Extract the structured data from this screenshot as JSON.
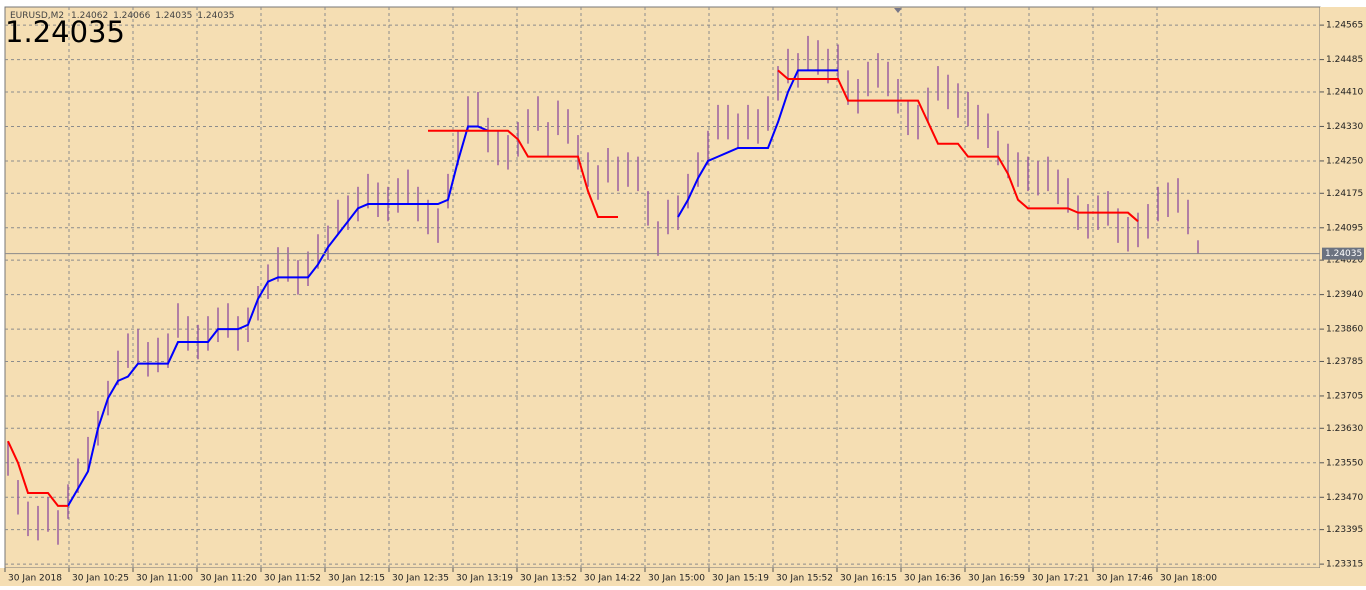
{
  "chart_data": {
    "type": "ohlc",
    "header": {
      "symbol": "EURUSD,M2",
      "ohlc": [
        "1.24062",
        "1.24066",
        "1.24035",
        "1.24035"
      ]
    },
    "last_price": "1.24035",
    "last_price_value": 1.24035,
    "ylim": [
      1.23306,
      1.24607
    ],
    "xlim": [
      -0.3,
      131.2
    ],
    "grid": true,
    "background": "#f5deb3",
    "bar_color": "#9a5fa0",
    "yticks": [
      {
        "value": 1.24565,
        "label": "1.24565"
      },
      {
        "value": 1.24485,
        "label": "1.24485"
      },
      {
        "value": 1.2441,
        "label": "1.24410"
      },
      {
        "value": 1.2433,
        "label": "1.24330"
      },
      {
        "value": 1.2425,
        "label": "1.24250"
      },
      {
        "value": 1.24175,
        "label": "1.24175"
      },
      {
        "value": 1.24095,
        "label": "1.24095"
      },
      {
        "value": 1.2402,
        "label": "1.24020"
      },
      {
        "value": 1.2394,
        "label": "1.23940"
      },
      {
        "value": 1.2386,
        "label": "1.23860"
      },
      {
        "value": 1.23785,
        "label": "1.23785"
      },
      {
        "value": 1.23705,
        "label": "1.23705"
      },
      {
        "value": 1.2363,
        "label": "1.23630"
      },
      {
        "value": 1.2355,
        "label": "1.23550"
      },
      {
        "value": 1.2347,
        "label": "1.23470"
      },
      {
        "value": 1.23395,
        "label": "1.23395"
      },
      {
        "value": 1.23315,
        "label": "1.23315"
      }
    ],
    "xticks": [
      {
        "value": -0.3,
        "label": "30 Jan 2018"
      },
      {
        "value": 6.1,
        "label": "30 Jan 10:25"
      },
      {
        "value": 12.5,
        "label": "30 Jan 11:00"
      },
      {
        "value": 18.9,
        "label": "30 Jan 11:20"
      },
      {
        "value": 25.3,
        "label": "30 Jan 11:52"
      },
      {
        "value": 31.7,
        "label": "30 Jan 12:15"
      },
      {
        "value": 38.1,
        "label": "30 Jan 12:35"
      },
      {
        "value": 44.5,
        "label": "30 Jan 13:19"
      },
      {
        "value": 50.9,
        "label": "30 Jan 13:52"
      },
      {
        "value": 57.3,
        "label": "30 Jan 14:22"
      },
      {
        "value": 63.7,
        "label": "30 Jan 15:00"
      },
      {
        "value": 70.1,
        "label": "30 Jan 15:19"
      },
      {
        "value": 76.5,
        "label": "30 Jan 15:52"
      },
      {
        "value": 82.9,
        "label": "30 Jan 16:15"
      },
      {
        "value": 89.3,
        "label": "30 Jan 16:36"
      },
      {
        "value": 95.7,
        "label": "30 Jan 16:59"
      },
      {
        "value": 102.1,
        "label": "30 Jan 17:21"
      },
      {
        "value": 108.5,
        "label": "30 Jan 17:46"
      },
      {
        "value": 114.9,
        "label": "30 Jan 18:00"
      }
    ],
    "high": [
      1.236,
      1.2351,
      1.2346,
      1.2345,
      1.2347,
      1.2344,
      1.235,
      1.2356,
      1.2361,
      1.2367,
      1.2374,
      1.2381,
      1.2385,
      1.2386,
      1.2383,
      1.2384,
      1.2385,
      1.2392,
      1.2389,
      1.2387,
      1.2389,
      1.2391,
      1.2392,
      1.2389,
      1.2391,
      1.2396,
      1.2401,
      1.2405,
      1.2405,
      1.2402,
      1.2404,
      1.2408,
      1.241,
      1.2416,
      1.2417,
      1.2419,
      1.2422,
      1.242,
      1.2419,
      1.2421,
      1.2423,
      1.2419,
      1.2416,
      1.2414,
      1.2422,
      1.2432,
      1.244,
      1.2441,
      1.2435,
      1.2432,
      1.2431,
      1.2434,
      1.2437,
      1.244,
      1.2434,
      1.2439,
      1.2437,
      1.2431,
      1.2427,
      1.2424,
      1.2428,
      1.2426,
      1.2427,
      1.2426,
      1.2418,
      1.2411,
      1.2416,
      1.2417,
      1.2422,
      1.2427,
      1.2432,
      1.2438,
      1.2438,
      1.2436,
      1.2438,
      1.2437,
      1.244,
      1.2447,
      1.2451,
      1.245,
      1.2454,
      1.2453,
      1.2451,
      1.2452,
      1.2446,
      1.2444,
      1.2448,
      1.245,
      1.2448,
      1.2444,
      1.2439,
      1.2438,
      1.2442,
      1.2447,
      1.2445,
      1.2443,
      1.2441,
      1.2438,
      1.2436,
      1.2432,
      1.2429,
      1.2427,
      1.2426,
      1.2425,
      1.2426,
      1.2423,
      1.2421,
      1.2417,
      1.2415,
      1.2417,
      1.2418,
      1.2414,
      1.2412,
      1.2413,
      1.2415,
      1.2419,
      1.242,
      1.2421,
      1.2416,
      1.24066
    ],
    "low": [
      1.2352,
      1.2343,
      1.2338,
      1.2337,
      1.2339,
      1.2336,
      1.2342,
      1.2348,
      1.2353,
      1.2359,
      1.2366,
      1.2373,
      1.2377,
      1.2378,
      1.2375,
      1.2376,
      1.2377,
      1.2384,
      1.2381,
      1.2379,
      1.2381,
      1.2383,
      1.2384,
      1.2381,
      1.2383,
      1.2388,
      1.2393,
      1.2397,
      1.2397,
      1.2394,
      1.2396,
      1.24,
      1.2402,
      1.2408,
      1.2409,
      1.2411,
      1.2414,
      1.2412,
      1.2411,
      1.2413,
      1.2415,
      1.2411,
      1.2408,
      1.2406,
      1.2414,
      1.2424,
      1.2432,
      1.2433,
      1.2427,
      1.2424,
      1.2423,
      1.2426,
      1.2429,
      1.2432,
      1.2426,
      1.2431,
      1.2429,
      1.2423,
      1.2419,
      1.2416,
      1.242,
      1.2418,
      1.2419,
      1.2418,
      1.241,
      1.2403,
      1.2408,
      1.2409,
      1.2414,
      1.2419,
      1.2424,
      1.243,
      1.243,
      1.2428,
      1.243,
      1.2429,
      1.2432,
      1.2439,
      1.2443,
      1.2442,
      1.2446,
      1.2445,
      1.2443,
      1.2444,
      1.2438,
      1.2436,
      1.244,
      1.2442,
      1.244,
      1.2436,
      1.2431,
      1.243,
      1.2434,
      1.2439,
      1.2437,
      1.2435,
      1.2433,
      1.243,
      1.2428,
      1.2424,
      1.2421,
      1.2419,
      1.2418,
      1.2417,
      1.2418,
      1.2415,
      1.2413,
      1.2409,
      1.2407,
      1.2409,
      1.241,
      1.2406,
      1.2404,
      1.2405,
      1.2407,
      1.2411,
      1.2412,
      1.2413,
      1.2408,
      1.24035
    ],
    "series": [
      {
        "color": "#0000ff",
        "values": [
          null,
          null,
          null,
          null,
          null,
          null,
          1.2345,
          1.2349,
          1.2353,
          1.2363,
          1.237,
          1.2374,
          1.2375,
          1.2378,
          1.2378,
          1.2378,
          1.2378,
          1.2383,
          1.2383,
          1.2383,
          1.2383,
          1.2386,
          1.2386,
          1.2386,
          1.2387,
          1.2393,
          1.2397,
          1.2398,
          1.2398,
          1.2398,
          1.2398,
          1.2401,
          1.2405,
          1.2408,
          1.2411,
          1.2414,
          1.2415,
          1.2415,
          1.2415,
          1.2415,
          1.2415,
          1.2415,
          1.2415,
          1.2415,
          1.2416,
          1.2425,
          1.2433,
          1.2433,
          1.2432,
          null,
          null,
          null,
          null,
          null,
          null,
          null,
          null,
          null,
          null,
          null,
          null,
          null,
          null,
          null,
          null,
          null,
          null,
          1.2412,
          1.2416,
          1.2421,
          1.2425,
          1.2426,
          1.2427,
          1.2428,
          1.2428,
          1.2428,
          1.2428,
          1.2434,
          1.2441,
          1.2446,
          1.2446,
          1.2446,
          1.2446,
          1.2446,
          null,
          null,
          null,
          null,
          null,
          null,
          null,
          null,
          null,
          null,
          null,
          null,
          null,
          null,
          null,
          null,
          null,
          null,
          null,
          null,
          null,
          null,
          null,
          null,
          null,
          null,
          null,
          null,
          null,
          null,
          null,
          null,
          null,
          null,
          null,
          null
        ]
      },
      {
        "color": "#ff0000",
        "values": [
          1.236,
          1.2355,
          1.2348,
          1.2348,
          1.2348,
          1.2345,
          1.2345,
          null,
          null,
          null,
          null,
          null,
          null,
          null,
          null,
          null,
          null,
          null,
          null,
          null,
          null,
          null,
          null,
          null,
          null,
          null,
          null,
          null,
          null,
          null,
          null,
          null,
          null,
          null,
          null,
          null,
          null,
          null,
          null,
          null,
          null,
          null,
          1.2432,
          1.2432,
          1.2432,
          1.2432,
          1.2432,
          1.2432,
          1.2432,
          1.2432,
          1.2432,
          1.243,
          1.2426,
          1.2426,
          1.2426,
          1.2426,
          1.2426,
          1.2426,
          1.2418,
          1.2412,
          1.2412,
          1.2412,
          null,
          null,
          null,
          null,
          null,
          null,
          null,
          null,
          null,
          null,
          null,
          null,
          null,
          null,
          null,
          1.2446,
          1.2444,
          1.2444,
          1.2444,
          1.2444,
          1.2444,
          1.2444,
          1.2439,
          1.2439,
          1.2439,
          1.2439,
          1.2439,
          1.2439,
          1.2439,
          1.2439,
          1.2434,
          1.2429,
          1.2429,
          1.2429,
          1.2426,
          1.2426,
          1.2426,
          1.2426,
          1.2422,
          1.2416,
          1.2414,
          1.2414,
          1.2414,
          1.2414,
          1.2414,
          1.2413,
          1.2413,
          1.2413,
          1.2413,
          1.2413,
          1.2413,
          1.2411
        ]
      }
    ]
  }
}
